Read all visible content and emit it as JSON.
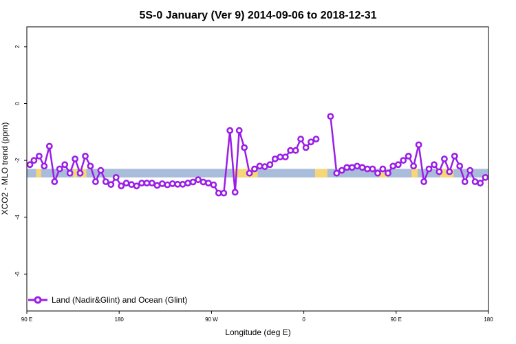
{
  "chart_data": {
    "type": "line",
    "title": "5S-0 January (Ver 9)   2014-09-06 to 2018-12-31",
    "xlabel": "Longitude (deg E)",
    "ylabel": "XCO2 - MLO trend (ppm)",
    "xlim": [
      90,
      540
    ],
    "ylim": [
      -7.3,
      2.7
    ],
    "x_ticks": [
      {
        "value": 90,
        "label": "90 E"
      },
      {
        "value": 180,
        "label": "180"
      },
      {
        "value": 270,
        "label": "90 W"
      },
      {
        "value": 360,
        "label": "0"
      },
      {
        "value": 450,
        "label": "90 E"
      },
      {
        "value": 540,
        "label": "180"
      }
    ],
    "y_ticks": [
      {
        "value": 2,
        "label": "2"
      },
      {
        "value": 0,
        "label": "0"
      },
      {
        "value": -2,
        "label": "-2"
      },
      {
        "value": -4,
        "label": "-4"
      },
      {
        "value": -6,
        "label": "-6"
      }
    ],
    "grid": false,
    "legend_position": "bottom-left",
    "series": [
      {
        "name": "Land (Nadir&Glint) and Ocean (Glint)",
        "color": "#9a1ee6",
        "segments": [
          [
            [
              93,
              -2.15
            ],
            [
              97,
              -2.0
            ],
            [
              102,
              -1.85
            ],
            [
              107,
              -2.2
            ],
            [
              112,
              -1.5
            ],
            [
              117,
              -2.75
            ],
            [
              122,
              -2.3
            ],
            [
              127,
              -2.15
            ],
            [
              132,
              -2.45
            ],
            [
              137,
              -1.95
            ],
            [
              142,
              -2.45
            ],
            [
              147,
              -1.85
            ],
            [
              152,
              -2.2
            ],
            [
              157,
              -2.75
            ],
            [
              162,
              -2.35
            ],
            [
              167,
              -2.75
            ],
            [
              172,
              -2.85
            ],
            [
              177,
              -2.6
            ],
            [
              182,
              -2.9
            ],
            [
              187,
              -2.8
            ],
            [
              192,
              -2.85
            ],
            [
              197,
              -2.9
            ],
            [
              202,
              -2.8
            ],
            [
              207,
              -2.8
            ],
            [
              212,
              -2.8
            ],
            [
              217,
              -2.88
            ],
            [
              222,
              -2.82
            ],
            [
              227,
              -2.86
            ],
            [
              232,
              -2.82
            ],
            [
              237,
              -2.84
            ],
            [
              242,
              -2.84
            ],
            [
              247,
              -2.8
            ],
            [
              252,
              -2.76
            ],
            [
              257,
              -2.68
            ],
            [
              262,
              -2.76
            ],
            [
              267,
              -2.8
            ],
            [
              272,
              -2.86
            ],
            [
              277,
              -3.15
            ],
            [
              282,
              -3.15
            ],
            [
              288,
              -0.95
            ],
            [
              293,
              -3.12
            ],
            [
              297,
              -0.95
            ],
            [
              302,
              -1.55
            ],
            [
              307,
              -2.45
            ],
            [
              312,
              -2.3
            ],
            [
              317,
              -2.2
            ],
            [
              322,
              -2.22
            ],
            [
              327,
              -2.15
            ],
            [
              332,
              -1.95
            ],
            [
              337,
              -1.88
            ],
            [
              342,
              -1.88
            ],
            [
              347,
              -1.65
            ],
            [
              352,
              -1.65
            ],
            [
              357,
              -1.25
            ],
            [
              362,
              -1.55
            ],
            [
              367,
              -1.35
            ],
            [
              372,
              -1.25
            ]
          ],
          [
            [
              386,
              -0.45
            ],
            [
              392,
              -2.45
            ],
            [
              397,
              -2.35
            ],
            [
              402,
              -2.25
            ],
            [
              407,
              -2.25
            ],
            [
              412,
              -2.2
            ],
            [
              417,
              -2.25
            ],
            [
              422,
              -2.3
            ],
            [
              427,
              -2.3
            ],
            [
              432,
              -2.45
            ],
            [
              437,
              -2.3
            ],
            [
              442,
              -2.45
            ],
            [
              447,
              -2.2
            ],
            [
              452,
              -2.15
            ],
            [
              457,
              -2.0
            ],
            [
              462,
              -1.85
            ],
            [
              467,
              -2.2
            ],
            [
              472,
              -1.45
            ],
            [
              477,
              -2.75
            ],
            [
              482,
              -2.3
            ],
            [
              487,
              -2.15
            ],
            [
              492,
              -2.4
            ],
            [
              497,
              -1.95
            ],
            [
              502,
              -2.4
            ],
            [
              507,
              -1.85
            ],
            [
              512,
              -2.2
            ],
            [
              517,
              -2.75
            ],
            [
              522,
              -2.35
            ],
            [
              527,
              -2.75
            ],
            [
              532,
              -2.8
            ],
            [
              537,
              -2.6
            ]
          ]
        ]
      }
    ],
    "background_band": {
      "y_range": [
        -2.6,
        -2.3
      ],
      "ocean_color": "#a9bcd9",
      "land_color": "#f6d778",
      "land_segments": [
        [
          99,
          104
        ],
        [
          135,
          139
        ],
        [
          143,
          148
        ],
        [
          291,
          315
        ],
        [
          371,
          383
        ],
        [
          434,
          441
        ],
        [
          465,
          471
        ],
        [
          493,
          506
        ]
      ]
    }
  }
}
